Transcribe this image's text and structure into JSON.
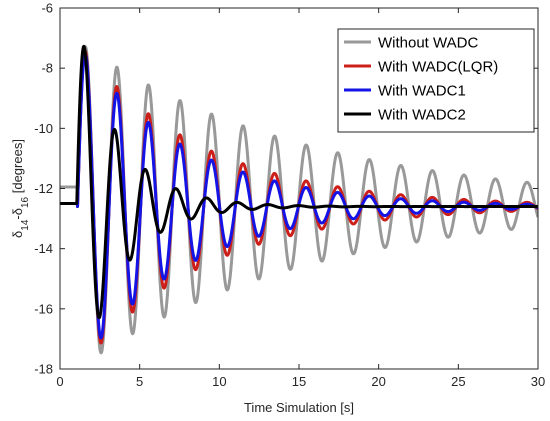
{
  "chart_data": {
    "type": "line",
    "xlabel": "Time Simulation [s]",
    "ylabel": {
      "parts": [
        {
          "text": "δ",
          "sub": ""
        },
        {
          "text": "14",
          "sub": "sub"
        },
        {
          "text": "-δ",
          "sub": ""
        },
        {
          "text": "16",
          "sub": "sub"
        },
        {
          "text": " [degrees]",
          "sub": ""
        }
      ]
    },
    "xlim": [
      0,
      30
    ],
    "ylim": [
      -18,
      -6
    ],
    "xticks": [
      0,
      5,
      10,
      15,
      20,
      25,
      30
    ],
    "yticks": [
      -18,
      -16,
      -14,
      -12,
      -10,
      -8,
      -6
    ],
    "grid": false,
    "legend_position": "top-right",
    "series": [
      {
        "name": "Without WADC",
        "color": "#999999",
        "initial": -11.95,
        "final": -12.55,
        "fault_time": 1.1,
        "freq_hz": 0.505,
        "decay": 0.07,
        "amplitude": 5.45,
        "phase_shift": 0.0
      },
      {
        "name": "With WADC(LQR)",
        "color": "#cc1f1a",
        "initial": -12.5,
        "final": -12.6,
        "fault_time": 1.1,
        "freq_hz": 0.505,
        "decay": 0.13,
        "amplitude": 5.5,
        "phase_shift": 0.0
      },
      {
        "name": "With WADC1",
        "color": "#1414e6",
        "initial": -12.5,
        "final": -12.6,
        "fault_time": 1.1,
        "freq_hz": 0.505,
        "decay": 0.15,
        "amplitude": 5.45,
        "phase_shift": 0.0
      },
      {
        "name": "With WADC2",
        "color": "#000000",
        "initial": -12.5,
        "final": -12.6,
        "fault_time": 1.05,
        "freq_hz": 0.52,
        "decay": 0.38,
        "amplitude": 6.35,
        "phase_shift": 0.0
      }
    ]
  }
}
